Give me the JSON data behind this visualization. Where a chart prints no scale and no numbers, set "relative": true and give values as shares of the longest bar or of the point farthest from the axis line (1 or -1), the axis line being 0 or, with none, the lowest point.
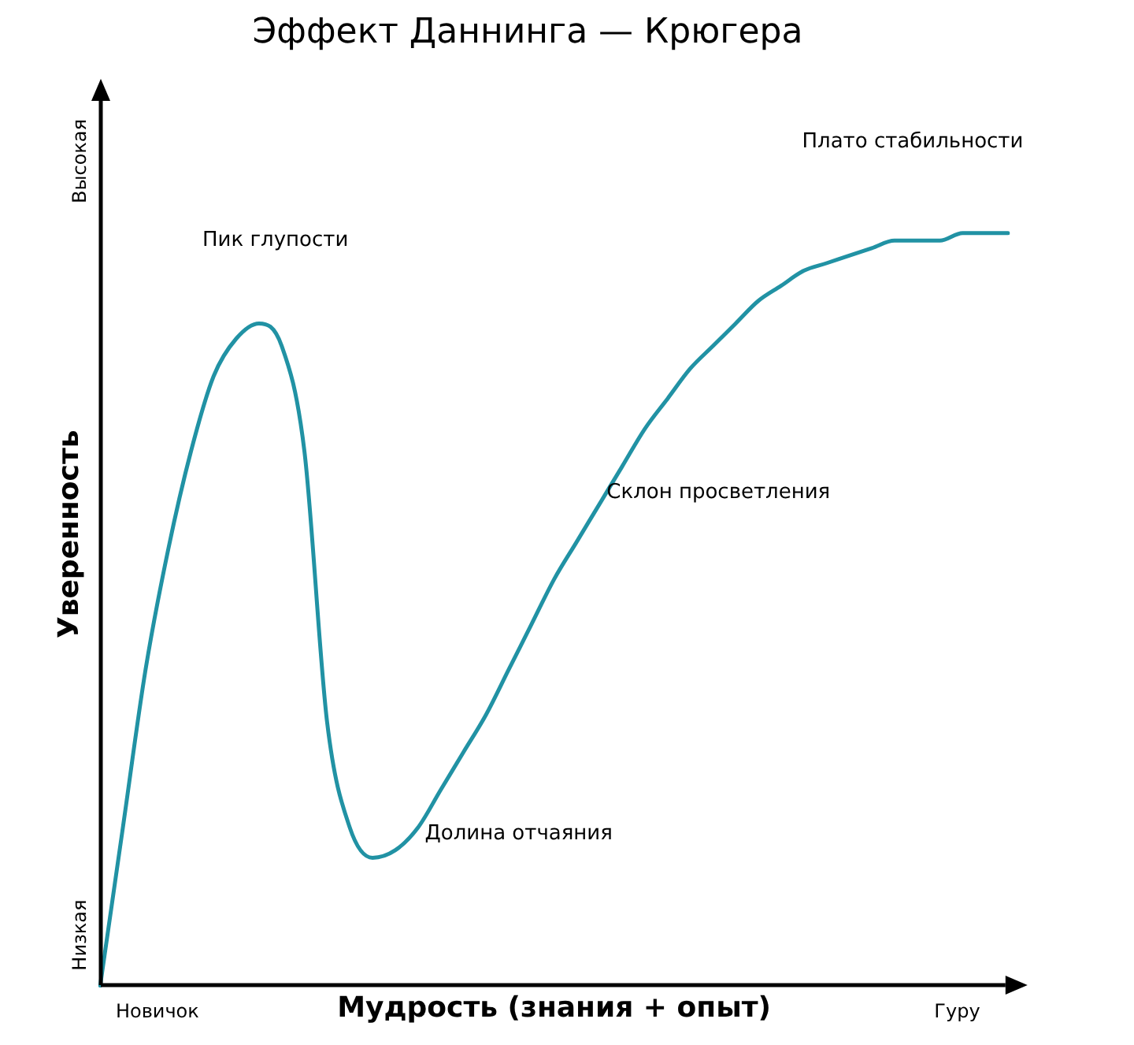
{
  "chart_data": {
    "type": "line",
    "title": "Эффект Даннинга — Крюгера",
    "xlabel": "Мудрость (знания + опыт)",
    "ylabel": "Уверенность",
    "relative": true,
    "categories": [
      null,
      null,
      null,
      null,
      null,
      null,
      null,
      null,
      null,
      null,
      null,
      null,
      null,
      null,
      null,
      null,
      null,
      null,
      null,
      null,
      null,
      null,
      null,
      null,
      null,
      null,
      null,
      null,
      null,
      null,
      null,
      null,
      null,
      null,
      null,
      null,
      null,
      null,
      null,
      null,
      null
    ],
    "series": [
      {
        "color": "#2192a4",
        "values": [
          0,
          0.21,
          0.42,
          0.58,
          0.71,
          0.81,
          0.86,
          0.88,
          0.85,
          0.71,
          0.35,
          0.21,
          0.17,
          0.18,
          0.21,
          0.26,
          0.31,
          0.36,
          0.42,
          0.48,
          0.54,
          0.59,
          0.64,
          0.69,
          0.74,
          0.78,
          0.82,
          0.85,
          0.88,
          0.91,
          0.93,
          0.95,
          0.96,
          0.97,
          0.98,
          0.99,
          0.99,
          0.99,
          1,
          1,
          1
        ]
      }
    ],
    "annotations": [
      "Пик глупости",
      "Долина отчаяния",
      "Склон просветления",
      "Плато стабильности",
      "Новичок",
      "Гуру",
      "Высокая",
      "Низкая"
    ],
    "grid": false,
    "legend": false,
    "marker": "none",
    "line_style": "solid"
  }
}
